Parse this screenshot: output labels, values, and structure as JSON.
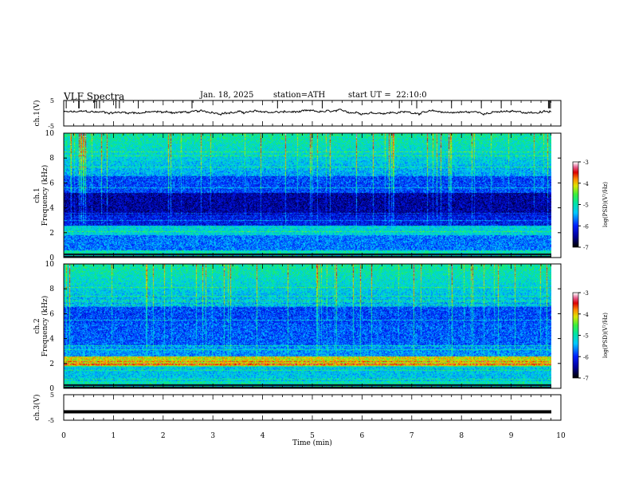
{
  "header": {
    "title": "VLF Spectra",
    "date": "Jan. 18, 2025",
    "station": "station=ATH",
    "start": "start UT =  22:10:0"
  },
  "chart_data": [
    {
      "type": "line",
      "panel": "channel-1-waveform",
      "ylabel": "ch.1(V)",
      "ylim": [
        -5,
        5
      ],
      "yticks": [
        "5",
        "-5"
      ],
      "xlim": [
        0,
        10
      ],
      "approx_level": 0.4
    },
    {
      "type": "heatmap",
      "panel": "channel-1-spectrogram",
      "ylabel": "ch.1\nFrequency (kHz)",
      "ylim": [
        0,
        10
      ],
      "yticks": [
        "0",
        "2",
        "4",
        "6",
        "8",
        "10"
      ],
      "xlim": [
        0,
        10
      ],
      "colorbar": {
        "label": "log(PSD)(V²/Hz)",
        "range": [
          -7,
          -3
        ],
        "ticks": [
          "-3",
          "-4",
          "-5",
          "-6",
          "-7"
        ]
      }
    },
    {
      "type": "heatmap",
      "panel": "channel-2-spectrogram",
      "ylabel": "ch.2\nFrequency (kHz)",
      "ylim": [
        0,
        10
      ],
      "yticks": [
        "0",
        "2",
        "4",
        "6",
        "8",
        "10"
      ],
      "xlim": [
        0,
        10
      ],
      "colorbar": {
        "label": "log(PSD)(V²/Hz)",
        "range": [
          -7,
          -3
        ],
        "ticks": [
          "-3",
          "-4",
          "-5",
          "-6",
          "-7"
        ]
      }
    },
    {
      "type": "line",
      "panel": "channel-3-waveform",
      "ylabel": "ch.3(V)",
      "ylim": [
        -5,
        5
      ],
      "yticks": [
        "5",
        "-5"
      ],
      "xlim": [
        0,
        10
      ],
      "approx_level": -1.7
    }
  ],
  "xaxis": {
    "label": "Time (min)",
    "ticks": [
      "0",
      "1",
      "2",
      "3",
      "4",
      "5",
      "6",
      "7",
      "8",
      "9",
      "10"
    ]
  },
  "colors": {
    "axes": "#000000",
    "background": "#ffffff"
  }
}
